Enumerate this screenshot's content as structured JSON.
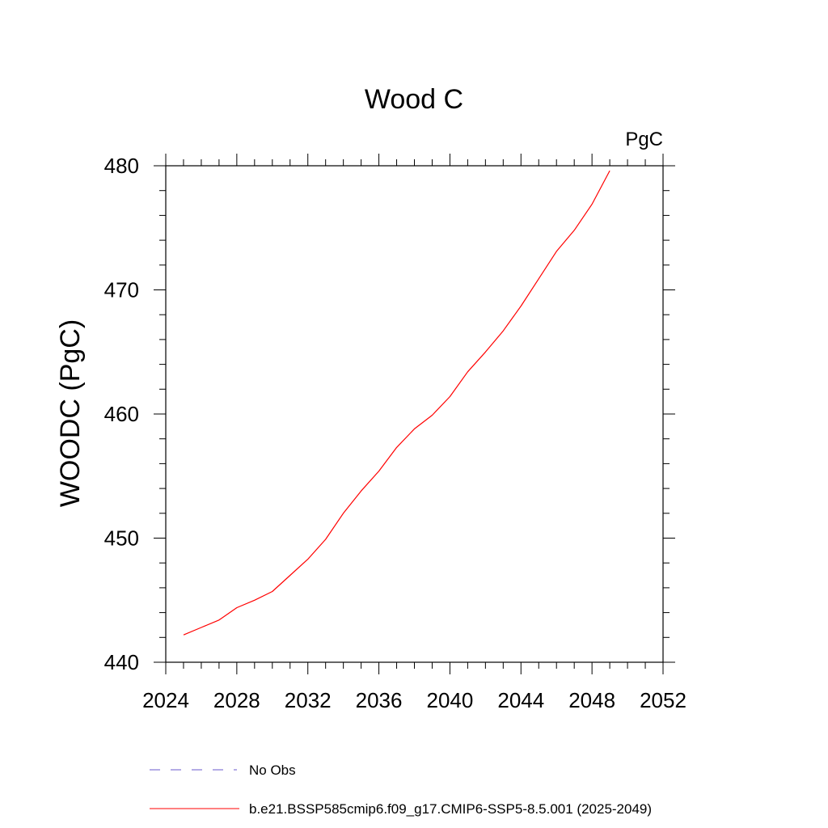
{
  "chart_data": {
    "type": "line",
    "title": "Wood C",
    "units": "PgC",
    "xlabel": "",
    "ylabel": "WOODC  (PgC)",
    "xlim": [
      2024,
      2052
    ],
    "ylim": [
      440,
      480
    ],
    "xticks": [
      2024,
      2028,
      2032,
      2036,
      2040,
      2044,
      2048,
      2052
    ],
    "yticks": [
      440,
      450,
      460,
      470,
      480
    ],
    "grid": false,
    "legend_position": "bottom",
    "legend": [
      {
        "label": "No Obs",
        "style": "dashed",
        "color": "#6a5acd"
      },
      {
        "label": "b.e21.BSSP585cmip6.f09_g17.CMIP6-SSP5-8.5.001 (2025-2049)",
        "style": "solid",
        "color": "#ff0000"
      }
    ],
    "series": [
      {
        "name": "b.e21.BSSP585cmip6.f09_g17.CMIP6-SSP5-8.5.001 (2025-2049)",
        "color": "#ff0000",
        "x": [
          2025,
          2026,
          2027,
          2028,
          2029,
          2030,
          2031,
          2032,
          2033,
          2034,
          2035,
          2036,
          2037,
          2038,
          2039,
          2040,
          2041,
          2042,
          2043,
          2044,
          2045,
          2046,
          2047,
          2048,
          2049
        ],
        "values": [
          442.2,
          442.8,
          443.4,
          444.4,
          445.0,
          445.7,
          447.0,
          448.3,
          449.9,
          452.0,
          453.8,
          455.4,
          457.3,
          458.8,
          459.9,
          461.4,
          463.4,
          465.0,
          466.7,
          468.7,
          470.9,
          473.1,
          474.8,
          476.9,
          479.6
        ]
      }
    ]
  }
}
